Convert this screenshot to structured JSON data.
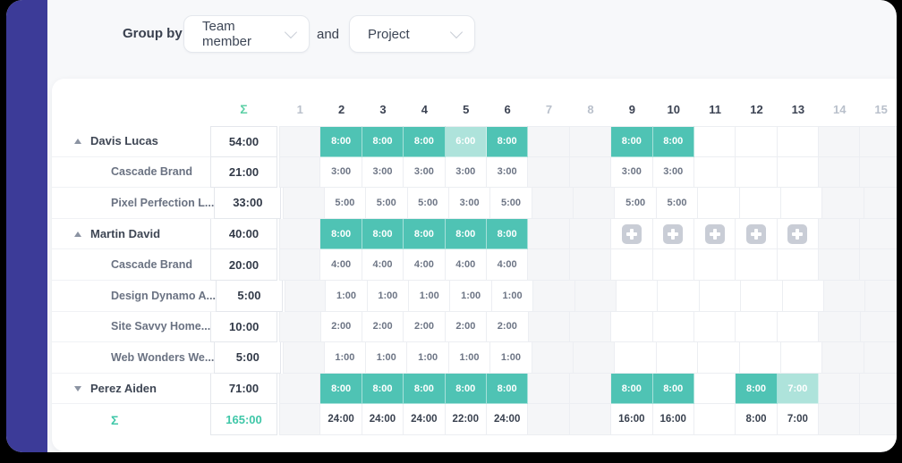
{
  "colors": {
    "purple": "#3c3b98",
    "teal": "#4fc3b4",
    "teallight": "#aee3db",
    "mint": "#5ccfa5",
    "sumgreen": "#3fc7a8"
  },
  "toolbar": {
    "group_by_label": "Group by",
    "conjunction": "and",
    "dropdowns": [
      {
        "value": "Team member"
      },
      {
        "value": "Project"
      }
    ]
  },
  "grid": {
    "sum_header": "Σ",
    "days": [
      {
        "label": "1",
        "muted": true
      },
      {
        "label": "2",
        "muted": false
      },
      {
        "label": "3",
        "muted": false
      },
      {
        "label": "4",
        "muted": false
      },
      {
        "label": "5",
        "muted": false
      },
      {
        "label": "6",
        "muted": false
      },
      {
        "label": "7",
        "muted": true
      },
      {
        "label": "8",
        "muted": true
      },
      {
        "label": "9",
        "muted": false
      },
      {
        "label": "10",
        "muted": false
      },
      {
        "label": "11",
        "muted": false
      },
      {
        "label": "12",
        "muted": false
      },
      {
        "label": "13",
        "muted": false
      },
      {
        "label": "14",
        "muted": true
      },
      {
        "label": "15",
        "muted": true
      }
    ],
    "rows": [
      {
        "level": "parent",
        "arrow": "up",
        "name": "Davis Lucas",
        "total": "54:00",
        "cells": {
          "2": {
            "v": "8:00",
            "s": "filled"
          },
          "3": {
            "v": "8:00",
            "s": "filled"
          },
          "4": {
            "v": "8:00",
            "s": "filled"
          },
          "5": {
            "v": "6:00",
            "s": "light"
          },
          "6": {
            "v": "8:00",
            "s": "filled"
          },
          "9": {
            "v": "8:00",
            "s": "filled"
          },
          "10": {
            "v": "8:00",
            "s": "filled"
          }
        }
      },
      {
        "level": "child",
        "name": "Cascade Brand",
        "total": "21:00",
        "cells": {
          "2": {
            "v": "3:00",
            "s": "plain"
          },
          "3": {
            "v": "3:00",
            "s": "plain"
          },
          "4": {
            "v": "3:00",
            "s": "plain"
          },
          "5": {
            "v": "3:00",
            "s": "plain"
          },
          "6": {
            "v": "3:00",
            "s": "plain"
          },
          "9": {
            "v": "3:00",
            "s": "plain"
          },
          "10": {
            "v": "3:00",
            "s": "plain"
          }
        }
      },
      {
        "level": "child",
        "name": "Pixel Perfection L...",
        "total": "33:00",
        "cells": {
          "2": {
            "v": "5:00",
            "s": "plain"
          },
          "3": {
            "v": "5:00",
            "s": "plain"
          },
          "4": {
            "v": "5:00",
            "s": "plain"
          },
          "5": {
            "v": "3:00",
            "s": "plain"
          },
          "6": {
            "v": "5:00",
            "s": "plain"
          },
          "9": {
            "v": "5:00",
            "s": "plain"
          },
          "10": {
            "v": "5:00",
            "s": "plain"
          }
        }
      },
      {
        "level": "parent",
        "arrow": "up",
        "name": "Martin David",
        "total": "40:00",
        "cells": {
          "2": {
            "v": "8:00",
            "s": "filled"
          },
          "3": {
            "v": "8:00",
            "s": "filled"
          },
          "4": {
            "v": "8:00",
            "s": "filled"
          },
          "5": {
            "v": "8:00",
            "s": "filled"
          },
          "6": {
            "v": "8:00",
            "s": "filled"
          },
          "9": {
            "s": "plus"
          },
          "10": {
            "s": "plus"
          },
          "11": {
            "s": "plus"
          },
          "12": {
            "s": "plus"
          },
          "13": {
            "s": "plus"
          }
        }
      },
      {
        "level": "child",
        "name": "Cascade Brand",
        "total": "20:00",
        "cells": {
          "2": {
            "v": "4:00",
            "s": "plain"
          },
          "3": {
            "v": "4:00",
            "s": "plain"
          },
          "4": {
            "v": "4:00",
            "s": "plain"
          },
          "5": {
            "v": "4:00",
            "s": "plain"
          },
          "6": {
            "v": "4:00",
            "s": "plain"
          }
        }
      },
      {
        "level": "child",
        "name": "Design Dynamo A...",
        "total": "5:00",
        "cells": {
          "2": {
            "v": "1:00",
            "s": "plain"
          },
          "3": {
            "v": "1:00",
            "s": "plain"
          },
          "4": {
            "v": "1:00",
            "s": "plain"
          },
          "5": {
            "v": "1:00",
            "s": "plain"
          },
          "6": {
            "v": "1:00",
            "s": "plain"
          }
        }
      },
      {
        "level": "child",
        "name": "Site Savvy Home...",
        "total": "10:00",
        "cells": {
          "2": {
            "v": "2:00",
            "s": "plain"
          },
          "3": {
            "v": "2:00",
            "s": "plain"
          },
          "4": {
            "v": "2:00",
            "s": "plain"
          },
          "5": {
            "v": "2:00",
            "s": "plain"
          },
          "6": {
            "v": "2:00",
            "s": "plain"
          }
        }
      },
      {
        "level": "child",
        "name": "Web Wonders We...",
        "total": "5:00",
        "cells": {
          "2": {
            "v": "1:00",
            "s": "plain"
          },
          "3": {
            "v": "1:00",
            "s": "plain"
          },
          "4": {
            "v": "1:00",
            "s": "plain"
          },
          "5": {
            "v": "1:00",
            "s": "plain"
          },
          "6": {
            "v": "1:00",
            "s": "plain"
          }
        }
      },
      {
        "level": "parent",
        "arrow": "down",
        "name": "Perez Aiden",
        "total": "71:00",
        "cells": {
          "2": {
            "v": "8:00",
            "s": "filled"
          },
          "3": {
            "v": "8:00",
            "s": "filled"
          },
          "4": {
            "v": "8:00",
            "s": "filled"
          },
          "5": {
            "v": "8:00",
            "s": "filled"
          },
          "6": {
            "v": "8:00",
            "s": "filled"
          },
          "9": {
            "v": "8:00",
            "s": "filled"
          },
          "10": {
            "v": "8:00",
            "s": "filled"
          },
          "12": {
            "v": "8:00",
            "s": "filled"
          },
          "13": {
            "v": "7:00",
            "s": "light"
          }
        }
      }
    ],
    "footer": {
      "symbol": "Σ",
      "total": "165:00",
      "cells": {
        "2": {
          "v": "24:00",
          "s": "strong"
        },
        "3": {
          "v": "24:00",
          "s": "strong"
        },
        "4": {
          "v": "24:00",
          "s": "strong"
        },
        "5": {
          "v": "22:00",
          "s": "strong"
        },
        "6": {
          "v": "24:00",
          "s": "strong"
        },
        "9": {
          "v": "16:00",
          "s": "strong"
        },
        "10": {
          "v": "16:00",
          "s": "strong"
        },
        "12": {
          "v": "8:00",
          "s": "strong"
        },
        "13": {
          "v": "7:00",
          "s": "strong"
        }
      }
    }
  }
}
